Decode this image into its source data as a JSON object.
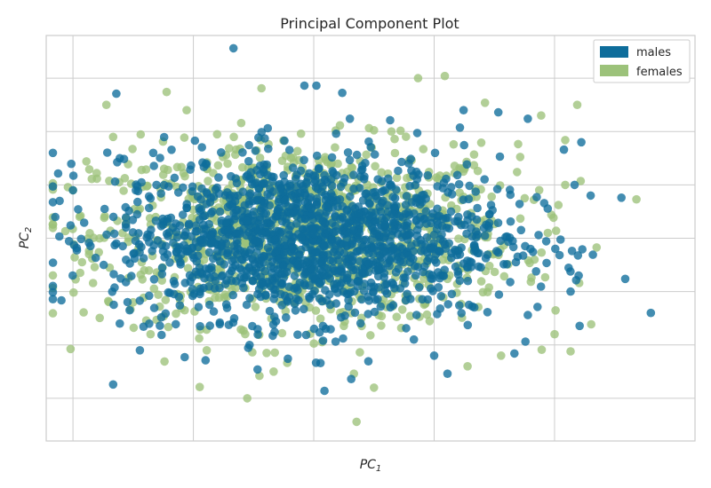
{
  "chart_data": {
    "type": "scatter",
    "title": "Principal Component Plot",
    "xlabel": {
      "base": "PC",
      "sub": "1"
    },
    "ylabel": {
      "base": "PC",
      "sub": "2"
    },
    "xlim": [
      -2.0,
      2.85
    ],
    "ylim": [
      -1.9,
      1.9
    ],
    "grid": true,
    "legend": {
      "placement": "top-right",
      "entries": [
        {
          "name": "males",
          "color": "#0e6d9b"
        },
        {
          "name": "females",
          "color": "#9cc27a"
        }
      ]
    },
    "x_gridlines": [
      -1.8,
      -0.9,
      0.0,
      0.9,
      1.8
    ],
    "y_gridlines": [
      -1.5,
      -1.0,
      -0.5,
      0.0,
      0.5,
      1.0,
      1.5
    ],
    "series": [
      {
        "name": "females",
        "color": "#9cc27a",
        "cluster": {
          "count": 1100,
          "center": [
            -0.05,
            0.03
          ],
          "spread": [
            0.78,
            0.42
          ]
        },
        "outliers": [
          [
            -1.55,
            1.25
          ],
          [
            -1.1,
            1.37
          ],
          [
            -0.95,
            1.2
          ],
          [
            0.78,
            1.5
          ],
          [
            0.98,
            1.52
          ],
          [
            1.28,
            1.27
          ],
          [
            1.7,
            1.15
          ],
          [
            1.97,
            1.25
          ],
          [
            1.88,
            0.92
          ],
          [
            -1.8,
            0.45
          ],
          [
            -1.75,
            0.2
          ],
          [
            -1.68,
            -0.15
          ],
          [
            -1.65,
            -0.42
          ],
          [
            -1.35,
            -0.6
          ],
          [
            -1.22,
            -0.9
          ],
          [
            -0.8,
            -1.05
          ],
          [
            -0.3,
            -1.25
          ],
          [
            0.3,
            -1.27
          ],
          [
            0.45,
            -1.4
          ],
          [
            0.32,
            -1.72
          ],
          [
            1.15,
            -1.2
          ],
          [
            1.4,
            -1.1
          ],
          [
            1.8,
            -0.9
          ],
          [
            1.92,
            -1.06
          ],
          [
            1.88,
            0.5
          ],
          [
            1.75,
            0.05
          ],
          [
            1.65,
            -0.2
          ],
          [
            -1.7,
            0.72
          ],
          [
            -1.5,
            0.95
          ],
          [
            1.52,
            0.62
          ]
        ]
      },
      {
        "name": "males",
        "color": "#0e6d9b",
        "cluster": {
          "count": 1500,
          "center": [
            -0.05,
            0.0
          ],
          "spread": [
            0.72,
            0.38
          ]
        },
        "outliers": [
          [
            -0.6,
            1.78
          ],
          [
            -0.07,
            1.43
          ],
          [
            0.02,
            1.43
          ],
          [
            0.27,
            1.12
          ],
          [
            1.12,
            1.2
          ],
          [
            1.38,
            1.18
          ],
          [
            1.6,
            1.12
          ],
          [
            1.87,
            0.83
          ],
          [
            2.07,
            0.4
          ],
          [
            2.3,
            0.38
          ],
          [
            2.52,
            -0.7
          ],
          [
            1.98,
            -0.35
          ],
          [
            1.62,
            -0.1
          ],
          [
            1.92,
            -0.5
          ],
          [
            1.6,
            -0.72
          ],
          [
            1.5,
            -1.08
          ],
          [
            -1.15,
            -0.82
          ],
          [
            -1.45,
            -0.8
          ],
          [
            -1.3,
            -1.05
          ],
          [
            -1.5,
            -1.37
          ],
          [
            -0.42,
            -1.23
          ],
          [
            0.08,
            -1.43
          ],
          [
            0.28,
            -1.32
          ],
          [
            0.05,
            -1.17
          ],
          [
            1.0,
            -1.27
          ],
          [
            -1.9,
            0.35
          ],
          [
            -1.57,
            -0.25
          ],
          [
            -1.8,
            0.45
          ],
          [
            1.95,
            0.5
          ],
          [
            2.0,
            0.9
          ],
          [
            -0.48,
            -1.0
          ],
          [
            0.9,
            -1.1
          ],
          [
            -1.2,
            0.8
          ],
          [
            -1.45,
            0.75
          ]
        ]
      }
    ]
  }
}
